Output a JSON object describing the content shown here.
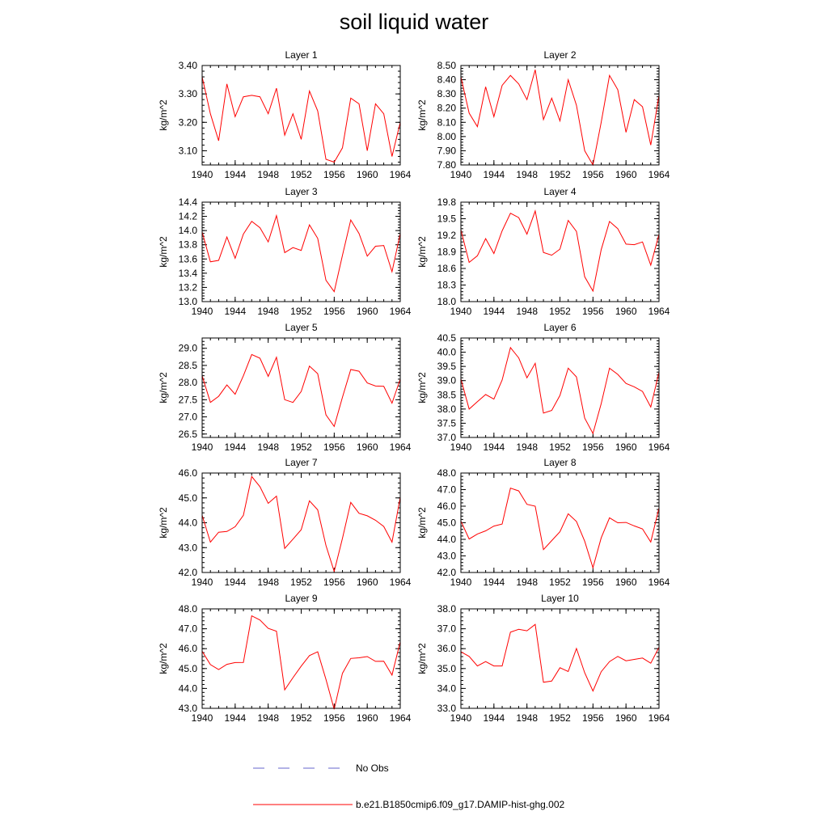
{
  "title": "soil liquid water",
  "legend": {
    "position": "bottom",
    "obs_label": "No Obs",
    "obs_color": "#6666cc",
    "model_label": "b.e21.B1850cmip6.f09_g17.DAMIP-hist-ghg.002",
    "model_color": "#ff0000"
  },
  "chart_data": [
    {
      "type": "line",
      "title": "Layer 1",
      "ylabel": "kg/m^2",
      "xlim": [
        1940,
        1964
      ],
      "ylim": [
        3.05,
        3.4
      ],
      "x_ticks": [
        "1940",
        "1944",
        "1948",
        "1952",
        "1956",
        "1960",
        "1964"
      ],
      "y_ticks": [
        "3.10",
        "3.20",
        "3.30",
        "3.40"
      ],
      "x": [
        1940,
        1941,
        1942,
        1943,
        1944,
        1945,
        1946,
        1947,
        1948,
        1949,
        1950,
        1951,
        1952,
        1953,
        1954,
        1955,
        1956,
        1957,
        1958,
        1959,
        1960,
        1961,
        1962,
        1963,
        1964
      ],
      "series": [
        {
          "name": "b.e21.B1850cmip6.f09_g17.DAMIP-hist-ghg.002",
          "values": [
            3.36,
            3.23,
            3.135,
            3.335,
            3.22,
            3.29,
            3.295,
            3.29,
            3.23,
            3.32,
            3.155,
            3.23,
            3.14,
            3.31,
            3.24,
            3.07,
            3.06,
            3.11,
            3.285,
            3.265,
            3.1,
            3.265,
            3.23,
            3.08,
            3.2
          ]
        }
      ]
    },
    {
      "type": "line",
      "title": "Layer 2",
      "ylabel": "kg/m^2",
      "xlim": [
        1940,
        1964
      ],
      "ylim": [
        7.8,
        8.5
      ],
      "x_ticks": [
        "1940",
        "1944",
        "1948",
        "1952",
        "1956",
        "1960",
        "1964"
      ],
      "y_ticks": [
        "7.80",
        "7.90",
        "8.00",
        "8.10",
        "8.20",
        "8.30",
        "8.40",
        "8.50"
      ],
      "x": [
        1940,
        1941,
        1942,
        1943,
        1944,
        1945,
        1946,
        1947,
        1948,
        1949,
        1950,
        1951,
        1952,
        1953,
        1954,
        1955,
        1956,
        1957,
        1958,
        1959,
        1960,
        1961,
        1962,
        1963,
        1964
      ],
      "series": [
        {
          "name": "b.e21.B1850cmip6.f09_g17.DAMIP-hist-ghg.002",
          "values": [
            8.42,
            8.165,
            8.07,
            8.35,
            8.14,
            8.36,
            8.43,
            8.37,
            8.26,
            8.47,
            8.12,
            8.27,
            8.11,
            8.4,
            8.22,
            7.9,
            7.8,
            8.1,
            8.43,
            8.33,
            8.03,
            8.26,
            8.21,
            7.94,
            8.29
          ]
        }
      ]
    },
    {
      "type": "line",
      "title": "Layer 3",
      "ylabel": "kg/m^2",
      "xlim": [
        1940,
        1964
      ],
      "ylim": [
        13.0,
        14.4
      ],
      "x_ticks": [
        "1940",
        "1944",
        "1948",
        "1952",
        "1956",
        "1960",
        "1964"
      ],
      "y_ticks": [
        "13.0",
        "13.2",
        "13.4",
        "13.6",
        "13.8",
        "14.0",
        "14.2",
        "14.4"
      ],
      "x": [
        1940,
        1941,
        1942,
        1943,
        1944,
        1945,
        1946,
        1947,
        1948,
        1949,
        1950,
        1951,
        1952,
        1953,
        1954,
        1955,
        1956,
        1957,
        1958,
        1959,
        1960,
        1961,
        1962,
        1963,
        1964
      ],
      "series": [
        {
          "name": "b.e21.B1850cmip6.f09_g17.DAMIP-hist-ghg.002",
          "values": [
            13.98,
            13.56,
            13.58,
            13.91,
            13.61,
            13.95,
            14.13,
            14.04,
            13.84,
            14.21,
            13.69,
            13.76,
            13.72,
            14.08,
            13.89,
            13.3,
            13.14,
            13.65,
            14.15,
            13.96,
            13.64,
            13.78,
            13.79,
            13.42,
            13.96
          ]
        }
      ]
    },
    {
      "type": "line",
      "title": "Layer 4",
      "ylabel": "kg/m^2",
      "xlim": [
        1940,
        1964
      ],
      "ylim": [
        18.0,
        19.8
      ],
      "x_ticks": [
        "1940",
        "1944",
        "1948",
        "1952",
        "1956",
        "1960",
        "1964"
      ],
      "y_ticks": [
        "18.0",
        "18.3",
        "18.6",
        "18.9",
        "19.2",
        "19.5",
        "19.8"
      ],
      "x": [
        1940,
        1941,
        1942,
        1943,
        1944,
        1945,
        1946,
        1947,
        1948,
        1949,
        1950,
        1951,
        1952,
        1953,
        1954,
        1955,
        1956,
        1957,
        1958,
        1959,
        1960,
        1961,
        1962,
        1963,
        1964
      ],
      "series": [
        {
          "name": "b.e21.B1850cmip6.f09_g17.DAMIP-hist-ghg.002",
          "values": [
            19.3,
            18.71,
            18.83,
            19.14,
            18.87,
            19.28,
            19.6,
            19.52,
            19.22,
            19.64,
            18.89,
            18.84,
            18.95,
            19.47,
            19.27,
            18.45,
            18.19,
            18.94,
            19.45,
            19.32,
            19.04,
            19.03,
            19.08,
            18.66,
            19.22
          ]
        }
      ]
    },
    {
      "type": "line",
      "title": "Layer 5",
      "ylabel": "kg/m^2",
      "xlim": [
        1940,
        1964
      ],
      "ylim": [
        26.4,
        29.3
      ],
      "x_ticks": [
        "1940",
        "1944",
        "1948",
        "1952",
        "1956",
        "1960",
        "1964"
      ],
      "y_ticks": [
        "26.5",
        "27.0",
        "27.5",
        "28.0",
        "28.5",
        "29.0"
      ],
      "x": [
        1940,
        1941,
        1942,
        1943,
        1944,
        1945,
        1946,
        1947,
        1948,
        1949,
        1950,
        1951,
        1952,
        1953,
        1954,
        1955,
        1956,
        1957,
        1958,
        1959,
        1960,
        1961,
        1962,
        1963,
        1964
      ],
      "series": [
        {
          "name": "b.e21.B1850cmip6.f09_g17.DAMIP-hist-ghg.002",
          "values": [
            28.2,
            27.42,
            27.6,
            27.93,
            27.66,
            28.2,
            28.82,
            28.71,
            28.18,
            28.74,
            27.5,
            27.42,
            27.74,
            28.48,
            28.26,
            27.06,
            26.72,
            27.57,
            28.38,
            28.33,
            27.99,
            27.9,
            27.89,
            27.4,
            28.1
          ]
        }
      ]
    },
    {
      "type": "line",
      "title": "Layer 6",
      "ylabel": "kg/m^2",
      "xlim": [
        1940,
        1964
      ],
      "ylim": [
        37.0,
        40.5
      ],
      "x_ticks": [
        "1940",
        "1944",
        "1948",
        "1952",
        "1956",
        "1960",
        "1964"
      ],
      "y_ticks": [
        "37.0",
        "37.5",
        "38.0",
        "38.5",
        "39.0",
        "39.5",
        "40.0",
        "40.5"
      ],
      "x": [
        1940,
        1941,
        1942,
        1943,
        1944,
        1945,
        1946,
        1947,
        1948,
        1949,
        1950,
        1951,
        1952,
        1953,
        1954,
        1955,
        1956,
        1957,
        1958,
        1959,
        1960,
        1961,
        1962,
        1963,
        1964
      ],
      "series": [
        {
          "name": "b.e21.B1850cmip6.f09_g17.DAMIP-hist-ghg.002",
          "values": [
            39.06,
            38.0,
            38.26,
            38.51,
            38.35,
            39.02,
            40.16,
            39.8,
            39.1,
            39.61,
            37.86,
            37.95,
            38.48,
            39.44,
            39.13,
            37.68,
            37.14,
            38.19,
            39.44,
            39.22,
            38.9,
            38.78,
            38.62,
            38.07,
            39.3
          ]
        }
      ]
    },
    {
      "type": "line",
      "title": "Layer 7",
      "ylabel": "kg/m^2",
      "xlim": [
        1940,
        1964
      ],
      "ylim": [
        42.0,
        46.0
      ],
      "x_ticks": [
        "1940",
        "1944",
        "1948",
        "1952",
        "1956",
        "1960",
        "1964"
      ],
      "y_ticks": [
        "42.0",
        "43.0",
        "44.0",
        "45.0",
        "46.0"
      ],
      "x": [
        1940,
        1941,
        1942,
        1943,
        1944,
        1945,
        1946,
        1947,
        1948,
        1949,
        1950,
        1951,
        1952,
        1953,
        1954,
        1955,
        1956,
        1957,
        1958,
        1959,
        1960,
        1961,
        1962,
        1963,
        1964
      ],
      "series": [
        {
          "name": "b.e21.B1850cmip6.f09_g17.DAMIP-hist-ghg.002",
          "values": [
            44.3,
            43.22,
            43.62,
            43.65,
            43.84,
            44.3,
            45.86,
            45.45,
            44.78,
            45.07,
            42.97,
            43.34,
            43.72,
            44.88,
            44.52,
            43.09,
            42.04,
            43.37,
            44.82,
            44.38,
            44.28,
            44.1,
            43.85,
            43.22,
            45.03
          ]
        }
      ]
    },
    {
      "type": "line",
      "title": "Layer 8",
      "ylabel": "kg/m^2",
      "xlim": [
        1940,
        1964
      ],
      "ylim": [
        42.0,
        48.0
      ],
      "x_ticks": [
        "1940",
        "1944",
        "1948",
        "1952",
        "1956",
        "1960",
        "1964"
      ],
      "y_ticks": [
        "42.0",
        "43.0",
        "44.0",
        "45.0",
        "46.0",
        "47.0",
        "48.0"
      ],
      "x": [
        1940,
        1941,
        1942,
        1943,
        1944,
        1945,
        1946,
        1947,
        1948,
        1949,
        1950,
        1951,
        1952,
        1953,
        1954,
        1955,
        1956,
        1957,
        1958,
        1959,
        1960,
        1961,
        1962,
        1963,
        1964
      ],
      "series": [
        {
          "name": "b.e21.B1850cmip6.f09_g17.DAMIP-hist-ghg.002",
          "values": [
            45.1,
            44.02,
            44.32,
            44.51,
            44.8,
            44.92,
            47.09,
            46.92,
            46.11,
            46.0,
            43.38,
            43.92,
            44.46,
            45.54,
            45.08,
            43.89,
            42.29,
            44.09,
            45.3,
            45.0,
            45.02,
            44.81,
            44.63,
            43.84,
            45.9
          ]
        }
      ]
    },
    {
      "type": "line",
      "title": "Layer 9",
      "ylabel": "kg/m^2",
      "xlim": [
        1940,
        1964
      ],
      "ylim": [
        43.0,
        48.0
      ],
      "x_ticks": [
        "1940",
        "1944",
        "1948",
        "1952",
        "1956",
        "1960",
        "1964"
      ],
      "y_ticks": [
        "43.0",
        "44.0",
        "45.0",
        "46.0",
        "47.0",
        "48.0"
      ],
      "x": [
        1940,
        1941,
        1942,
        1943,
        1944,
        1945,
        1946,
        1947,
        1948,
        1949,
        1950,
        1951,
        1952,
        1953,
        1954,
        1955,
        1956,
        1957,
        1958,
        1959,
        1960,
        1961,
        1962,
        1963,
        1964
      ],
      "series": [
        {
          "name": "b.e21.B1850cmip6.f09_g17.DAMIP-hist-ghg.002",
          "values": [
            45.87,
            45.2,
            44.95,
            45.21,
            45.3,
            45.31,
            47.65,
            47.44,
            47.02,
            46.88,
            43.93,
            44.54,
            45.12,
            45.65,
            45.84,
            44.46,
            42.95,
            44.76,
            45.51,
            45.54,
            45.6,
            45.36,
            45.37,
            44.67,
            46.35
          ]
        }
      ]
    },
    {
      "type": "line",
      "title": "Layer 10",
      "ylabel": "kg/m^2",
      "xlim": [
        1940,
        1964
      ],
      "ylim": [
        33.0,
        38.0
      ],
      "x_ticks": [
        "1940",
        "1944",
        "1948",
        "1952",
        "1956",
        "1960",
        "1964"
      ],
      "y_ticks": [
        "33.0",
        "34.0",
        "35.0",
        "36.0",
        "37.0",
        "38.0"
      ],
      "x": [
        1940,
        1941,
        1942,
        1943,
        1944,
        1945,
        1946,
        1947,
        1948,
        1949,
        1950,
        1951,
        1952,
        1953,
        1954,
        1955,
        1956,
        1957,
        1958,
        1959,
        1960,
        1961,
        1962,
        1963,
        1964
      ],
      "series": [
        {
          "name": "b.e21.B1850cmip6.f09_g17.DAMIP-hist-ghg.002",
          "values": [
            35.84,
            35.61,
            35.13,
            35.35,
            35.13,
            35.13,
            36.83,
            36.97,
            36.9,
            37.22,
            34.31,
            34.37,
            35.04,
            34.85,
            36.01,
            34.79,
            33.87,
            34.84,
            35.35,
            35.61,
            35.39,
            35.46,
            35.53,
            35.27,
            36.07
          ]
        }
      ]
    }
  ]
}
